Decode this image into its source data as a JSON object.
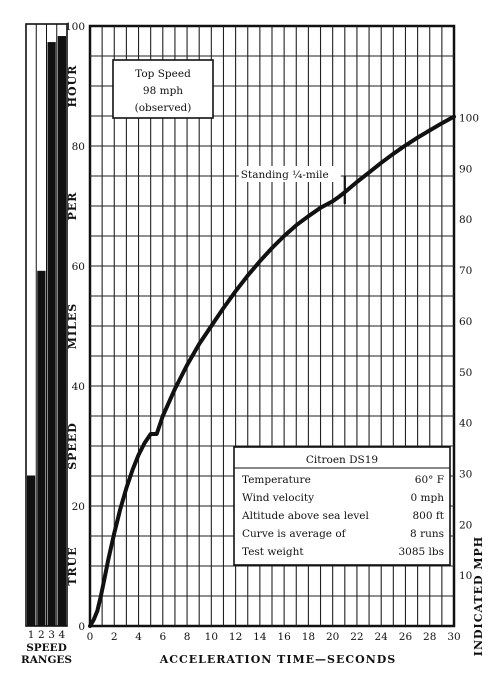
{
  "chart_data": {
    "type": "line",
    "title": "",
    "xlabel": "ACCELERATION TIME—SECONDS",
    "ylabel_left": [
      "TRUE",
      "SPEED",
      "MILES",
      "PER",
      "HOUR"
    ],
    "ylabel_right": "INDICATED MPH",
    "xlim": [
      0,
      30
    ],
    "ylim": [
      0,
      100
    ],
    "x_ticks": [
      0,
      2,
      4,
      6,
      8,
      10,
      12,
      14,
      16,
      18,
      20,
      22,
      24,
      26,
      28,
      30
    ],
    "y_ticks_left": [
      0,
      20,
      40,
      60,
      80,
      100
    ],
    "y_ticks_right": [
      10,
      20,
      30,
      40,
      50,
      60,
      70,
      80,
      90,
      100
    ],
    "grid": true,
    "series": [
      {
        "x": [
          0,
          0.3,
          0.6,
          0.9,
          1.2,
          1.5,
          2,
          2.5,
          3,
          3.5,
          4,
          4.5,
          5,
          5.5,
          6,
          7,
          8,
          9,
          10,
          11,
          12,
          13,
          14,
          15,
          16,
          17,
          18,
          19,
          20,
          20.5,
          21,
          22,
          23,
          24,
          25,
          26,
          27,
          28,
          29,
          30
        ],
        "y": [
          0,
          1,
          2.5,
          5,
          8,
          11,
          15.5,
          19.5,
          23,
          26,
          28.5,
          30.5,
          32,
          32,
          35,
          39.5,
          43.5,
          47,
          50,
          53,
          55.8,
          58.4,
          60.8,
          63,
          65,
          66.8,
          68.3,
          69.7,
          70.8,
          71.5,
          72.3,
          74,
          75.6,
          77.2,
          78.7,
          80.1,
          81.4,
          82.6,
          83.8,
          84.9
        ]
      }
    ],
    "annotations": {
      "top_speed": [
        "Top Speed",
        "98 mph",
        "(observed)"
      ],
      "standing_quarter_mile": "Standing ¼-mile",
      "standing_quarter_mile_at": {
        "x": 21,
        "y": 72
      }
    },
    "info_box": {
      "title": "Citroen DS19",
      "rows": [
        {
          "label": "Temperature",
          "value": "60° F"
        },
        {
          "label": "Wind velocity",
          "value": "0 mph"
        },
        {
          "label": "Altitude above sea level",
          "value": "800 ft"
        },
        {
          "label": "Curve is average of",
          "value": "8 runs"
        },
        {
          "label": "Test weight",
          "value": "3085 lbs"
        }
      ]
    },
    "speed_ranges": {
      "label": [
        "SPEED",
        "RANGES"
      ],
      "gears": [
        "1",
        "2",
        "3",
        "4"
      ],
      "ranges": [
        [
          0,
          25
        ],
        [
          0,
          59
        ],
        [
          0,
          97
        ],
        [
          0,
          98
        ]
      ]
    }
  }
}
